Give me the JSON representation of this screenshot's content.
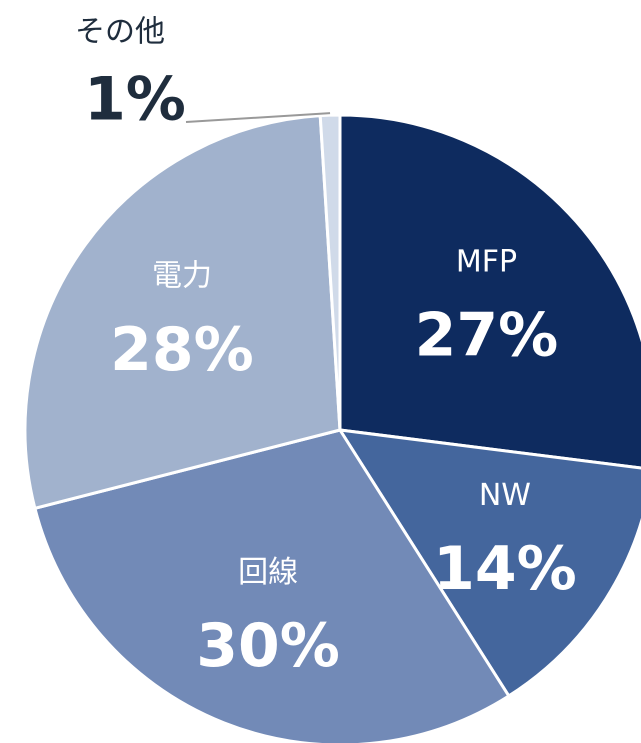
{
  "chart_data": {
    "type": "pie",
    "categories": [
      "MFP",
      "NW",
      "回線",
      "電力",
      "その他"
    ],
    "values": [
      27,
      14,
      30,
      28,
      1
    ],
    "value_labels": [
      "27%",
      "14%",
      "30%",
      "28%",
      "1%"
    ],
    "colors": [
      "#0e2b5f",
      "#44669d",
      "#728ab7",
      "#a1b2cd",
      "#d0dae9"
    ]
  }
}
